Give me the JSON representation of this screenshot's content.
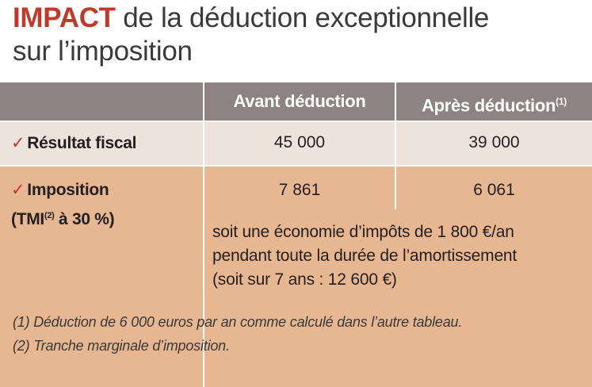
{
  "title": {
    "accent": "IMPACT",
    "rest_line1": " de la déduction exceptionnelle",
    "line2": "sur l’imposition"
  },
  "table": {
    "headers": {
      "before": "Avant déduction",
      "after": "Après déduction",
      "after_note": "(1)"
    },
    "rows": [
      {
        "check": "✓",
        "label": "Résultat fiscal",
        "before": "45 000",
        "after": "39 000"
      },
      {
        "check": "✓",
        "label": "Imposition",
        "sub_prefix": "(TMI",
        "sub_note": "(2)",
        "sub_suffix": " à 30 %)",
        "before": "7 861",
        "after": "6 061"
      }
    ],
    "savings_note": {
      "line1": "soit une économie d’impôts de 1 800 €/an",
      "line2": "pendant toute la durée de l’amortissement",
      "line3": "(soit sur 7 ans : 12 600 €)"
    }
  },
  "footnotes": [
    "(1) Déduction de 6 000 euros par an comme calculé dans l’autre tableau.",
    "(2) Tranche marginale d’imposition."
  ],
  "colors": {
    "accent": "#c0392b",
    "header_bg": "#8c8382",
    "row1_bg": "#ece4dc",
    "row2_bg": "#e6b790"
  }
}
